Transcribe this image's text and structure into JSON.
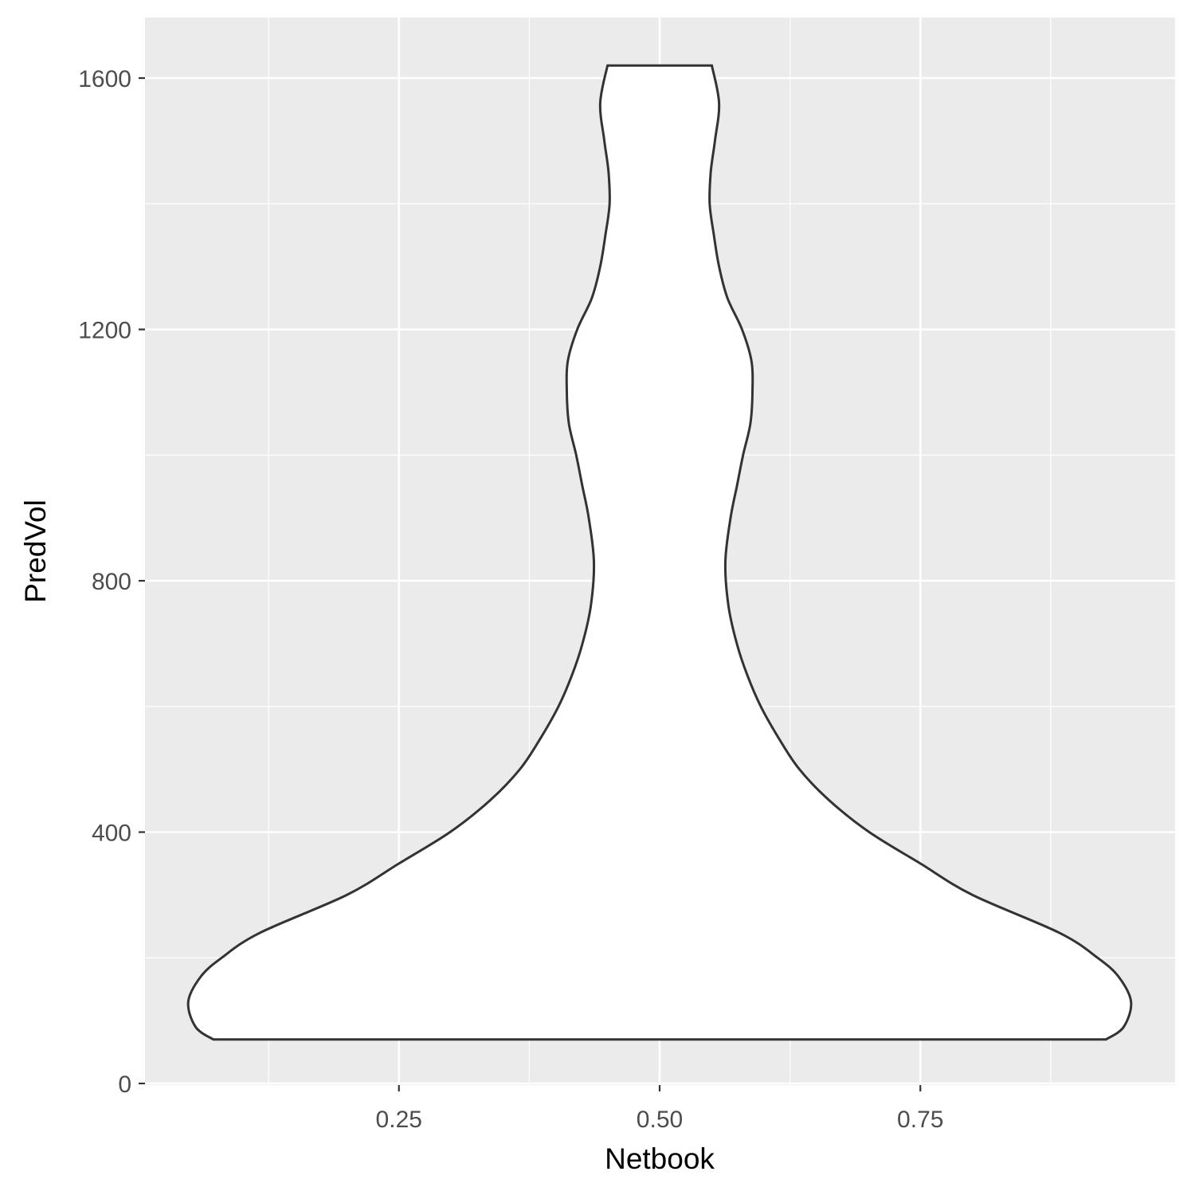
{
  "chart_data": {
    "type": "violin",
    "title": "",
    "xlabel": "Netbook",
    "ylabel": "PredVol",
    "xlim": [
      0.0,
      1.0
    ],
    "ylim": [
      0,
      1640
    ],
    "x_ticks": [
      0.25,
      0.5,
      0.75
    ],
    "x_tick_labels": [
      "0.25",
      "0.50",
      "0.75"
    ],
    "y_ticks": [
      0,
      400,
      800,
      1200,
      1600
    ],
    "y_tick_labels": [
      "0",
      "400",
      "800",
      "1200",
      "1600"
    ],
    "grid": true,
    "legend": "none",
    "colors": {
      "panel_background": "#ebebeb",
      "grid": "#ffffff",
      "violin_fill": "#ffffff",
      "violin_outline": "#333333"
    },
    "violin": {
      "center_x": 0.5,
      "min_y": 70,
      "max_y": 1620,
      "profile": [
        {
          "y": 70,
          "half_width": 0.428
        },
        {
          "y": 90,
          "half_width": 0.445
        },
        {
          "y": 130,
          "half_width": 0.452
        },
        {
          "y": 170,
          "half_width": 0.44
        },
        {
          "y": 200,
          "half_width": 0.42
        },
        {
          "y": 240,
          "half_width": 0.383
        },
        {
          "y": 300,
          "half_width": 0.3
        },
        {
          "y": 350,
          "half_width": 0.25
        },
        {
          "y": 400,
          "half_width": 0.201
        },
        {
          "y": 450,
          "half_width": 0.163
        },
        {
          "y": 500,
          "half_width": 0.134
        },
        {
          "y": 550,
          "half_width": 0.114
        },
        {
          "y": 600,
          "half_width": 0.097
        },
        {
          "y": 650,
          "half_width": 0.084
        },
        {
          "y": 700,
          "half_width": 0.074
        },
        {
          "y": 760,
          "half_width": 0.066
        },
        {
          "y": 830,
          "half_width": 0.063
        },
        {
          "y": 900,
          "half_width": 0.068
        },
        {
          "y": 950,
          "half_width": 0.074
        },
        {
          "y": 1000,
          "half_width": 0.08
        },
        {
          "y": 1050,
          "half_width": 0.087
        },
        {
          "y": 1100,
          "half_width": 0.089
        },
        {
          "y": 1150,
          "half_width": 0.088
        },
        {
          "y": 1200,
          "half_width": 0.079
        },
        {
          "y": 1250,
          "half_width": 0.065
        },
        {
          "y": 1300,
          "half_width": 0.057
        },
        {
          "y": 1350,
          "half_width": 0.052
        },
        {
          "y": 1400,
          "half_width": 0.048
        },
        {
          "y": 1450,
          "half_width": 0.049
        },
        {
          "y": 1500,
          "half_width": 0.053
        },
        {
          "y": 1560,
          "half_width": 0.057
        },
        {
          "y": 1620,
          "half_width": 0.05
        }
      ]
    }
  }
}
